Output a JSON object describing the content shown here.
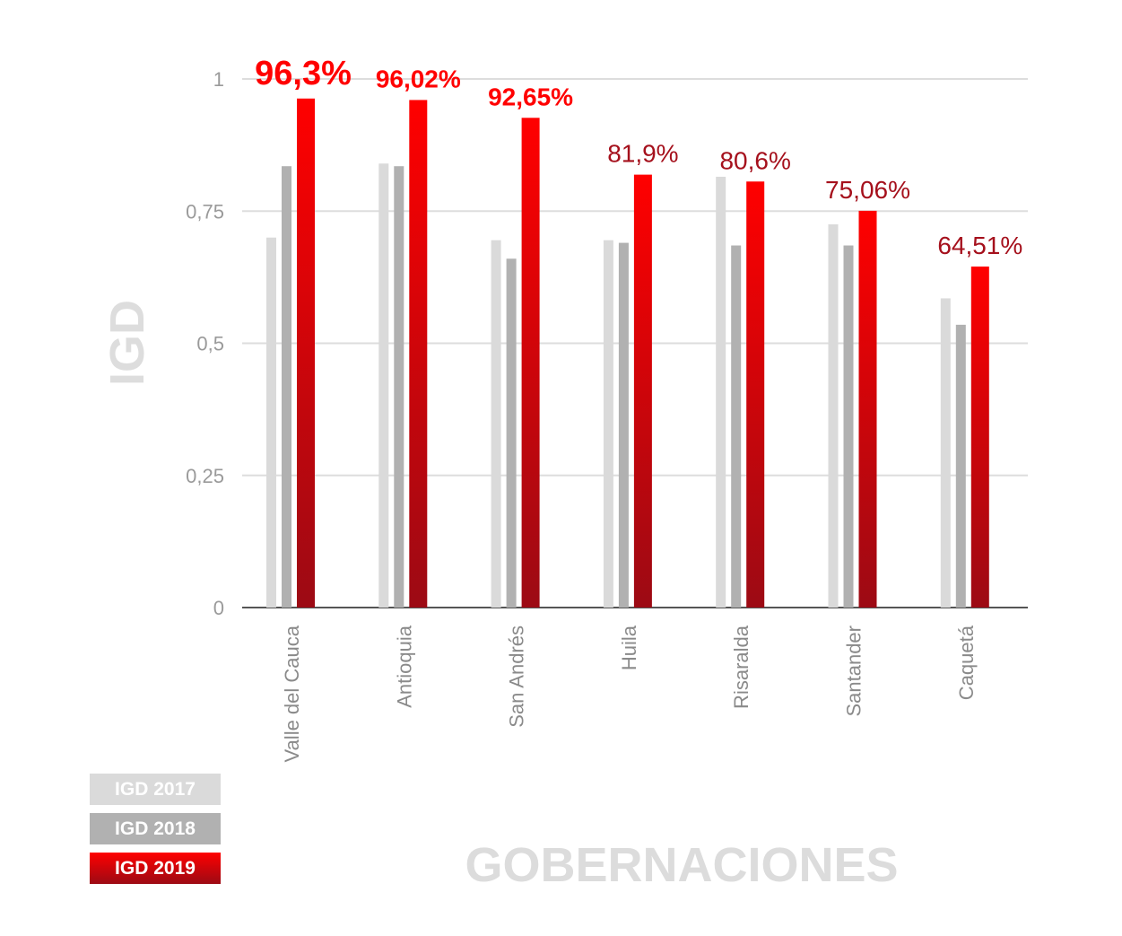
{
  "chart_data": {
    "type": "bar",
    "ylabel": "IGD",
    "xlabel": "GOBERNACIONES",
    "ylim": [
      0,
      1
    ],
    "yticks": [
      {
        "value": 0,
        "label": "0"
      },
      {
        "value": 0.25,
        "label": "0,25"
      },
      {
        "value": 0.5,
        "label": "0,5"
      },
      {
        "value": 0.75,
        "label": "0,75"
      },
      {
        "value": 1,
        "label": "1"
      }
    ],
    "grid": true,
    "legend_position": "bottom-left",
    "categories": [
      "Valle del Cauca",
      "Antioquia",
      "San Andrés",
      "Huila",
      "Risaralda",
      "Santander",
      "Caquetá"
    ],
    "series": [
      {
        "name": "IGD 2017",
        "color": "#dadada",
        "values": [
          0.7,
          0.84,
          0.695,
          0.695,
          0.815,
          0.725,
          0.585
        ]
      },
      {
        "name": "IGD 2018",
        "color": "#b1b1b1",
        "values": [
          0.835,
          0.835,
          0.66,
          0.69,
          0.685,
          0.685,
          0.535
        ]
      },
      {
        "name": "IGD 2019",
        "color_top": "#ff0000",
        "color_bottom": "#9c0a14",
        "values": [
          0.963,
          0.9602,
          0.9265,
          0.819,
          0.806,
          0.7506,
          0.6451
        ]
      }
    ],
    "data_labels": [
      "96,3%",
      "96,02%",
      "92,65%",
      "81,9%",
      "80,6%",
      "75,06%",
      "64,51%"
    ],
    "data_label_colors": [
      "#ff0000",
      "#ff0000",
      "#ff0000",
      "#a5101c",
      "#a5101c",
      "#a5101c",
      "#a5101c"
    ]
  }
}
